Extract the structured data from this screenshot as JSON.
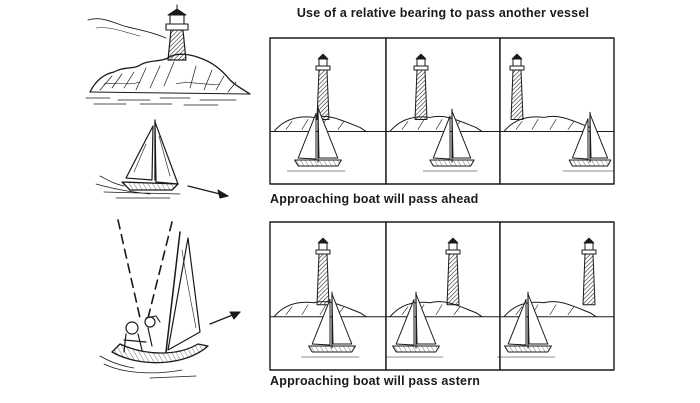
{
  "title": "Use of a relative bearing to pass another vessel",
  "rows": [
    {
      "caption": "Approaching boat will pass ahead"
    },
    {
      "caption": "Approaching boat will pass astern"
    }
  ],
  "colors": {
    "ink": "#1a1a1a",
    "background": "#ffffff"
  }
}
